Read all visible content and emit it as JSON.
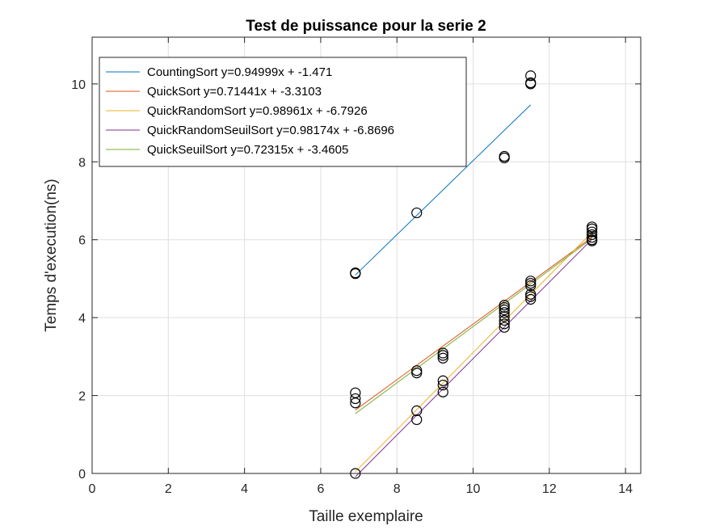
{
  "chart_data": {
    "type": "scatter",
    "title": "Test de puissance pour la serie 2",
    "xlabel": "Taille exemplaire",
    "ylabel": "Temps d'execution(ns)",
    "xlim": [
      0,
      14.4
    ],
    "ylim": [
      0,
      11.2
    ],
    "xticks": [
      0,
      2,
      4,
      6,
      8,
      10,
      12,
      14
    ],
    "yticks": [
      0,
      2,
      4,
      6,
      8,
      10
    ],
    "grid": true,
    "legend_position": "top-left",
    "points": [
      {
        "x": 6.91,
        "y": 5.15
      },
      {
        "x": 6.91,
        "y": 5.13
      },
      {
        "x": 8.52,
        "y": 6.69
      },
      {
        "x": 10.82,
        "y": 8.1
      },
      {
        "x": 10.82,
        "y": 8.14
      },
      {
        "x": 11.51,
        "y": 10.21
      },
      {
        "x": 11.51,
        "y": 10.03
      },
      {
        "x": 11.51,
        "y": 10.0
      },
      {
        "x": 6.91,
        "y": 2.07
      },
      {
        "x": 6.91,
        "y": 1.92
      },
      {
        "x": 6.91,
        "y": 1.81
      },
      {
        "x": 6.91,
        "y": 0.0
      },
      {
        "x": 8.52,
        "y": 2.64
      },
      {
        "x": 8.52,
        "y": 2.58
      },
      {
        "x": 8.52,
        "y": 1.61
      },
      {
        "x": 8.52,
        "y": 1.38
      },
      {
        "x": 9.21,
        "y": 3.09
      },
      {
        "x": 9.21,
        "y": 3.03
      },
      {
        "x": 9.21,
        "y": 2.96
      },
      {
        "x": 9.21,
        "y": 2.38
      },
      {
        "x": 9.21,
        "y": 2.27
      },
      {
        "x": 9.21,
        "y": 2.09
      },
      {
        "x": 10.82,
        "y": 4.32
      },
      {
        "x": 10.82,
        "y": 4.26
      },
      {
        "x": 10.82,
        "y": 4.2
      },
      {
        "x": 10.82,
        "y": 4.13
      },
      {
        "x": 10.82,
        "y": 4.03
      },
      {
        "x": 10.82,
        "y": 3.93
      },
      {
        "x": 10.82,
        "y": 3.84
      },
      {
        "x": 10.82,
        "y": 3.75
      },
      {
        "x": 11.51,
        "y": 4.94
      },
      {
        "x": 11.51,
        "y": 4.88
      },
      {
        "x": 11.51,
        "y": 4.82
      },
      {
        "x": 11.51,
        "y": 4.6
      },
      {
        "x": 11.51,
        "y": 4.54
      },
      {
        "x": 11.51,
        "y": 4.47
      },
      {
        "x": 13.12,
        "y": 6.33
      },
      {
        "x": 13.12,
        "y": 6.28
      },
      {
        "x": 13.12,
        "y": 6.2
      },
      {
        "x": 13.12,
        "y": 6.13
      },
      {
        "x": 13.12,
        "y": 6.06
      },
      {
        "x": 13.12,
        "y": 6.0
      },
      {
        "x": 13.12,
        "y": 5.97
      }
    ],
    "series": [
      {
        "name": "CountingSort y=0.94999x + -1.471",
        "color": "#0072BD",
        "slope": 0.94999,
        "intercept": -1.471,
        "x_range": [
          6.91,
          11.51
        ]
      },
      {
        "name": "QuickSort y=0.71441x + -3.3103",
        "color": "#D95319",
        "slope": 0.71441,
        "intercept": -3.3103,
        "x_range": [
          6.91,
          13.12
        ]
      },
      {
        "name": "QuickRandomSort y=0.98961x + -6.7926",
        "color": "#EDB120",
        "slope": 0.98961,
        "intercept": -6.7926,
        "x_range": [
          6.91,
          13.12
        ]
      },
      {
        "name": "QuickRandomSeuilSort y=0.98174x + -6.8696",
        "color": "#7E2F8E",
        "slope": 0.98174,
        "intercept": -6.8696,
        "x_range": [
          6.91,
          13.12
        ]
      },
      {
        "name": "QuickSeuilSort y=0.72315x + -3.4605",
        "color": "#77AC30",
        "slope": 0.72315,
        "intercept": -3.4605,
        "x_range": [
          6.91,
          13.12
        ]
      }
    ]
  }
}
